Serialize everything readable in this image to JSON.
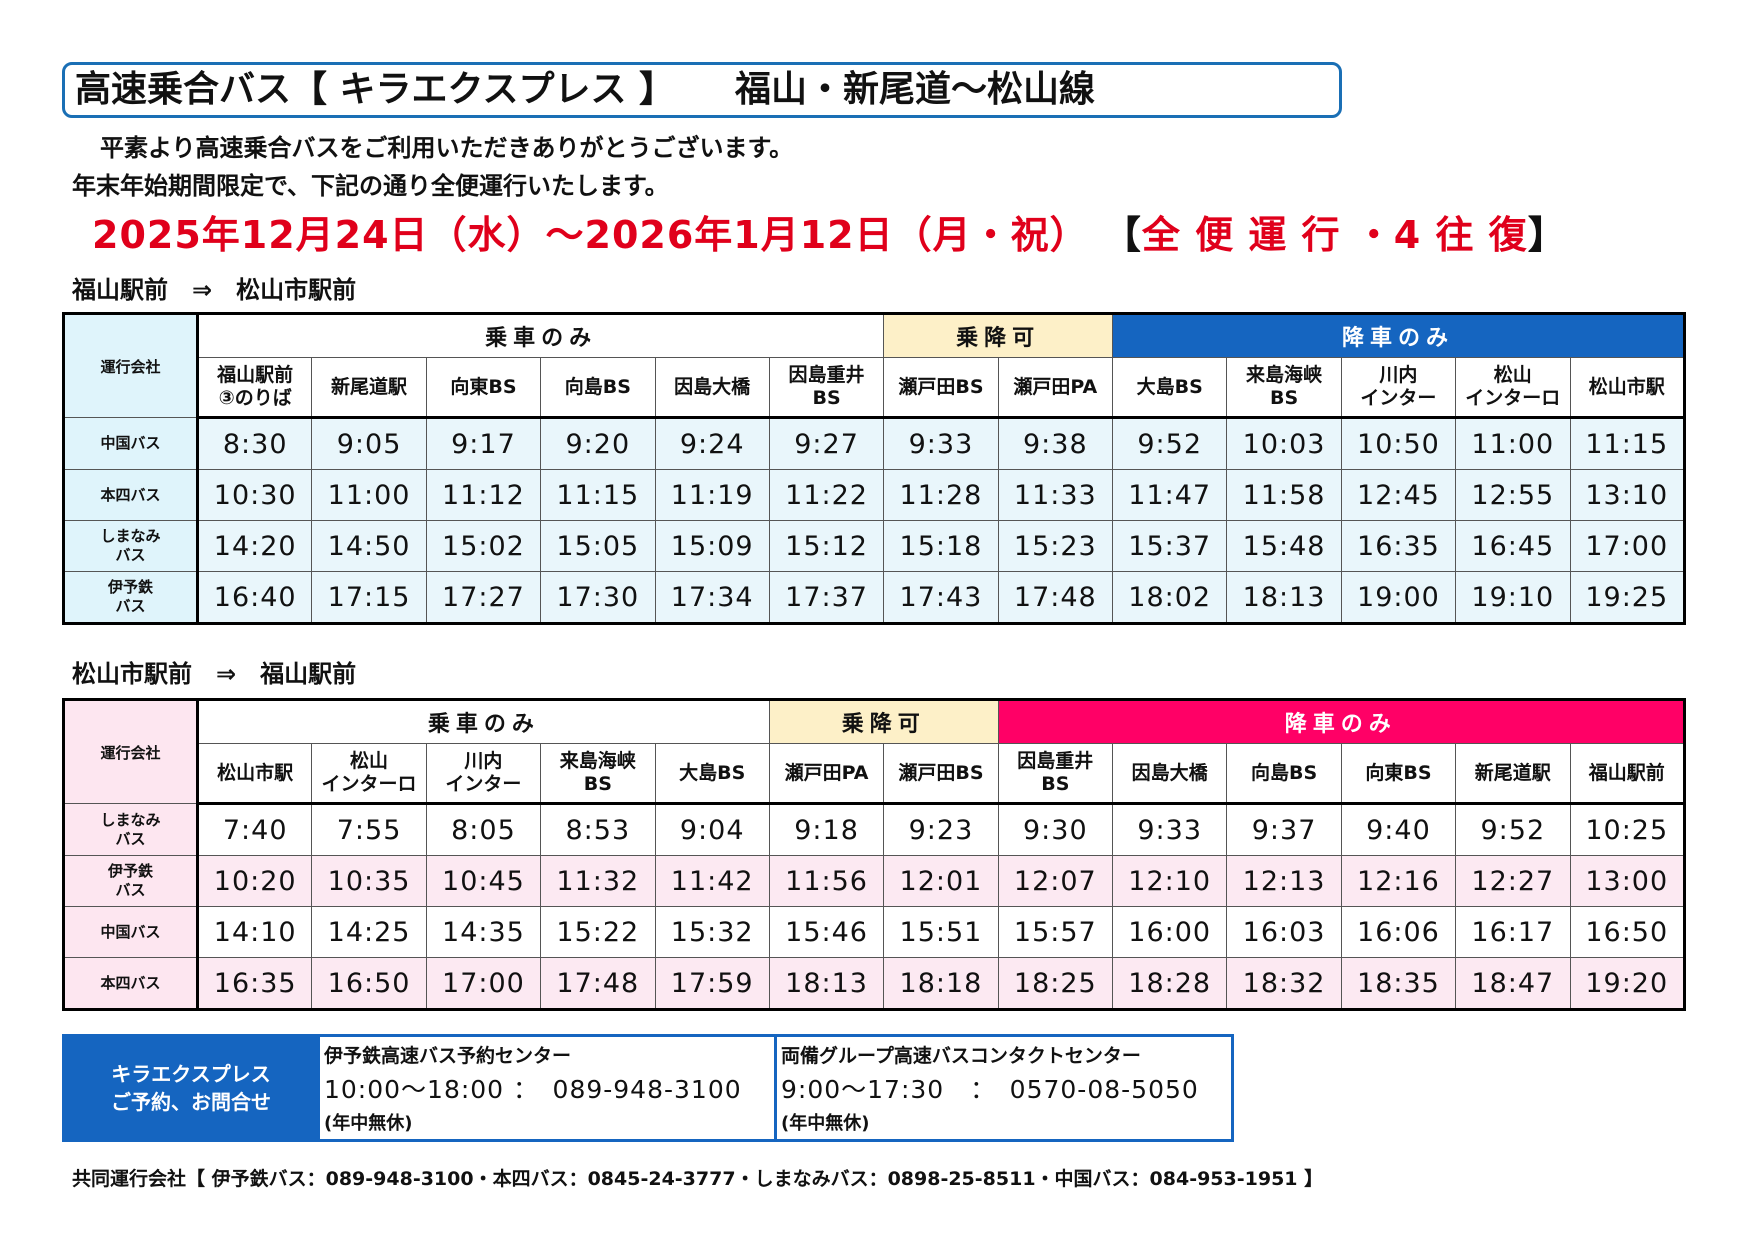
{
  "title": {
    "main": "高速乗合バス【 キラエクスプレス 】",
    "route": "福山・新尾道〜松山線"
  },
  "intro": {
    "line1": "平素より高速乗合バスをご利用いただきありがとうございます。",
    "line2": "年末年始期間限定で、下記の通り全便運行いたします。"
  },
  "period": {
    "dates": "2025年12月24日（水）〜2026年1月12日（月・祝）",
    "open": "【",
    "service": "全 便 運 行 ・4 往 復",
    "close": "】"
  },
  "colors": {
    "title_border": "#1a6fb5",
    "period": "#e0001b",
    "blue_bar": "#1565c0",
    "tan_bar": "#fdf0c8",
    "pink_bar": "#ff0066"
  },
  "table1": {
    "route_label": "福山駅前　⇒　松山市駅前",
    "company_header": "運行会社",
    "sections": {
      "board": "乗車のみ",
      "both": "乗降可",
      "alight": "降車のみ"
    },
    "stops": [
      "福山駅前\n③のりば",
      "新尾道駅",
      "向東BS",
      "向島BS",
      "因島大橋",
      "因島重井\nBS",
      "瀬戸田BS",
      "瀬戸田PA",
      "大島BS",
      "来島海峡\nBS",
      "川内\nインター",
      "松山\nインターロ",
      "松山市駅"
    ],
    "rows": [
      {
        "company": "中国バス",
        "times": [
          "8:30",
          "9:05",
          "9:17",
          "9:20",
          "9:24",
          "9:27",
          "9:33",
          "9:38",
          "9:52",
          "10:03",
          "10:50",
          "11:00",
          "11:15"
        ]
      },
      {
        "company": "本四バス",
        "times": [
          "10:30",
          "11:00",
          "11:12",
          "11:15",
          "11:19",
          "11:22",
          "11:28",
          "11:33",
          "11:47",
          "11:58",
          "12:45",
          "12:55",
          "13:10"
        ]
      },
      {
        "company": "しまなみ\nバス",
        "times": [
          "14:20",
          "14:50",
          "15:02",
          "15:05",
          "15:09",
          "15:12",
          "15:18",
          "15:23",
          "15:37",
          "15:48",
          "16:35",
          "16:45",
          "17:00"
        ]
      },
      {
        "company": "伊予鉄\nバス",
        "times": [
          "16:40",
          "17:15",
          "17:27",
          "17:30",
          "17:34",
          "17:37",
          "17:43",
          "17:48",
          "18:02",
          "18:13",
          "19:00",
          "19:10",
          "19:25"
        ]
      }
    ]
  },
  "table2": {
    "route_label": "松山市駅前　⇒　福山駅前",
    "company_header": "運行会社",
    "sections": {
      "board": "乗車のみ",
      "both": "乗降可",
      "alight": "降車のみ"
    },
    "stops": [
      "松山市駅",
      "松山\nインターロ",
      "川内\nインター",
      "来島海峡\nBS",
      "大島BS",
      "瀬戸田PA",
      "瀬戸田BS",
      "因島重井\nBS",
      "因島大橋",
      "向島BS",
      "向東BS",
      "新尾道駅",
      "福山駅前"
    ],
    "rows": [
      {
        "company": "しまなみ\nバス",
        "times": [
          "7:40",
          "7:55",
          "8:05",
          "8:53",
          "9:04",
          "9:18",
          "9:23",
          "9:30",
          "9:33",
          "9:37",
          "9:40",
          "9:52",
          "10:25"
        ]
      },
      {
        "company": "伊予鉄\nバス",
        "times": [
          "10:20",
          "10:35",
          "10:45",
          "11:32",
          "11:42",
          "11:56",
          "12:01",
          "12:07",
          "12:10",
          "12:13",
          "12:16",
          "12:27",
          "13:00"
        ]
      },
      {
        "company": "中国バス",
        "times": [
          "14:10",
          "14:25",
          "14:35",
          "15:22",
          "15:32",
          "15:46",
          "15:51",
          "15:57",
          "16:00",
          "16:03",
          "16:06",
          "16:17",
          "16:50"
        ]
      },
      {
        "company": "本四バス",
        "times": [
          "16:35",
          "16:50",
          "17:00",
          "17:48",
          "17:59",
          "18:13",
          "18:18",
          "18:25",
          "18:28",
          "18:32",
          "18:35",
          "18:47",
          "19:20"
        ]
      }
    ]
  },
  "contact": {
    "label_line1": "キラエクスプレス",
    "label_line2": "ご予約、お問合せ",
    "center1": {
      "name": "伊予鉄高速バス予約センター",
      "hours": "10:00〜18:00 ：　089-948-3100",
      "note": "(年中無休)"
    },
    "center2": {
      "name": "両備グループ高速バスコンタクトセンター",
      "hours": "9:00〜17:30　：　0570-08-5050",
      "note": "(年中無休)"
    }
  },
  "footer": "共同運行会社【 伊予鉄バス：089-948-3100・本四バス：0845-24-3777・しまなみバス：0898-25-8511・中国バス：084-953-1951 】"
}
